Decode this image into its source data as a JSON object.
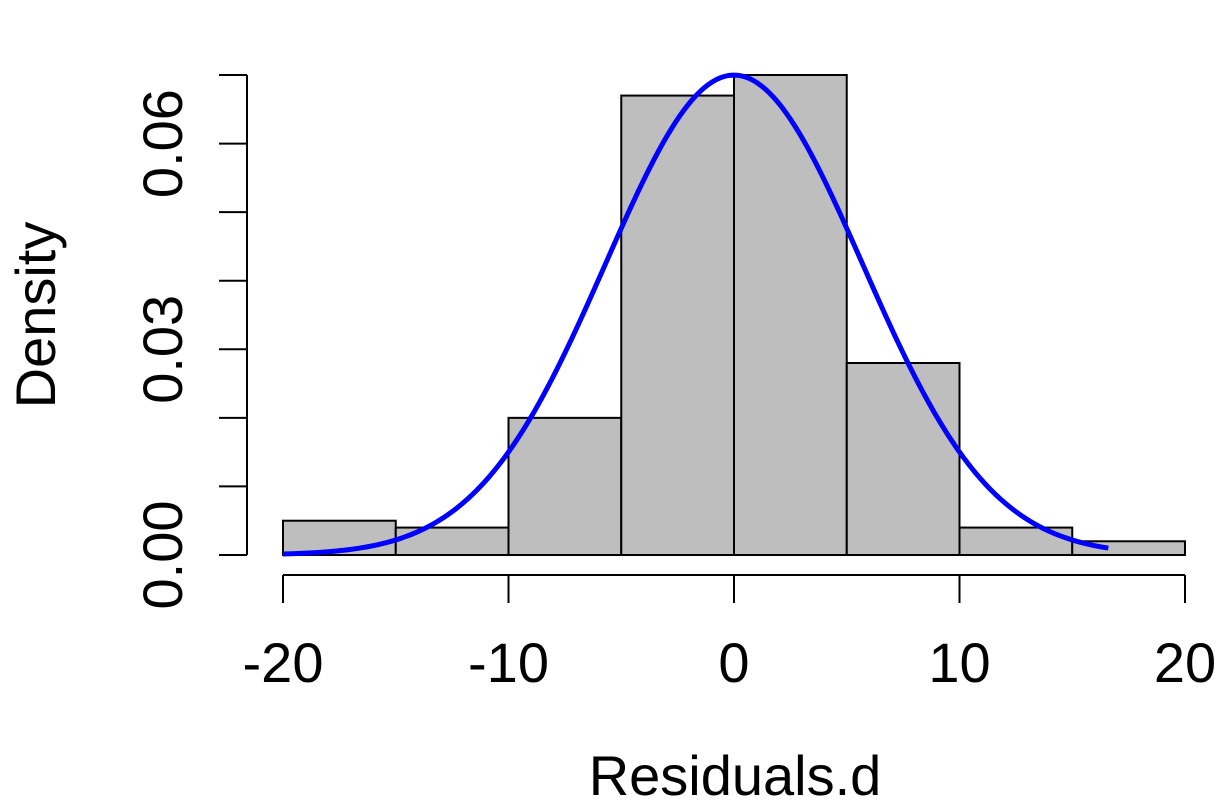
{
  "chart_data": {
    "type": "bar",
    "subtype": "histogram",
    "xlabel": "Residuals.d",
    "ylabel": "Density",
    "xlim": [
      -20,
      20
    ],
    "ylim": [
      0,
      0.07
    ],
    "x_ticks": [
      "-20",
      "-10",
      "0",
      "10",
      "20"
    ],
    "y_ticks": [
      "0.00",
      "0.03",
      "0.06"
    ],
    "bins": [
      {
        "from": -20,
        "to": -15,
        "density": 0.005
      },
      {
        "from": -15,
        "to": -10,
        "density": 0.004
      },
      {
        "from": -10,
        "to": -5,
        "density": 0.02
      },
      {
        "from": -5,
        "to": 0,
        "density": 0.067
      },
      {
        "from": 0,
        "to": 5,
        "density": 0.07
      },
      {
        "from": 5,
        "to": 10,
        "density": 0.028
      },
      {
        "from": 10,
        "to": 15,
        "density": 0.004
      },
      {
        "from": 15,
        "to": 20,
        "density": 0.002
      }
    ],
    "curve": {
      "kind": "normal density",
      "mean": 0.0,
      "sd": 5.7,
      "x_range": [
        -20,
        16.6
      ],
      "color": "#0000ff"
    },
    "bar_color": "#bebebe",
    "grid": false
  }
}
